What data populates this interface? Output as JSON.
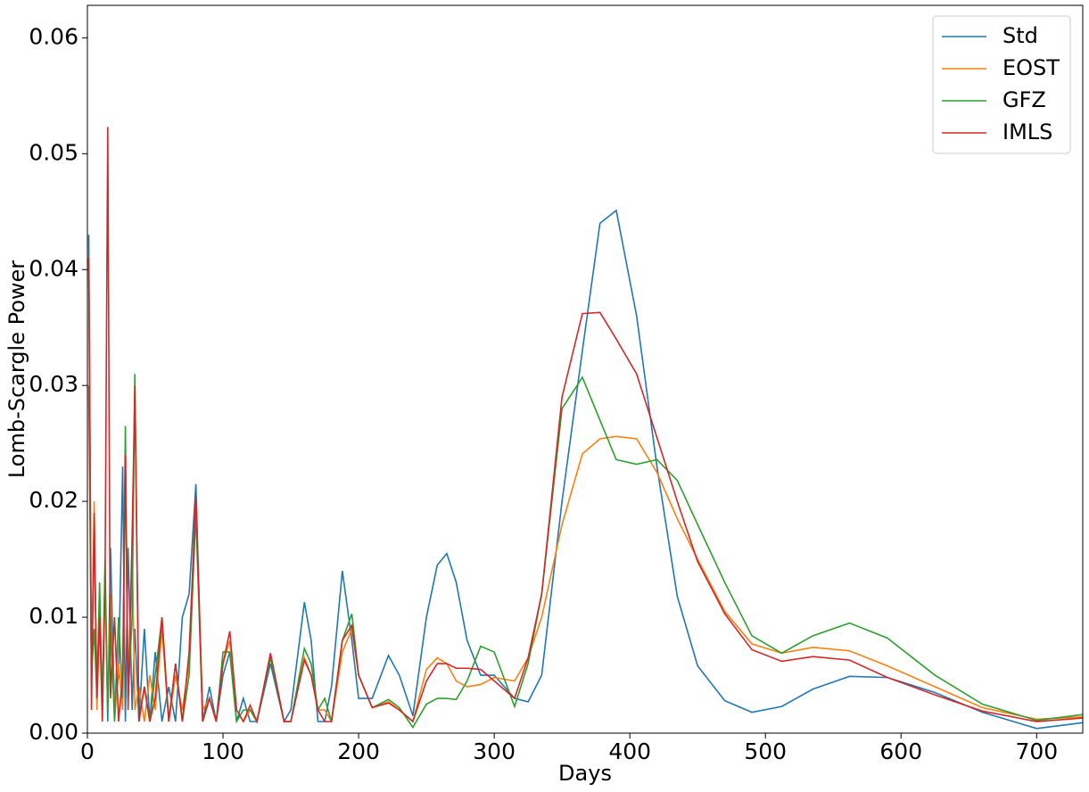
{
  "chart_data": {
    "type": "line",
    "xlabel": "Days",
    "ylabel": "Lomb-Scargle Power",
    "xlim": [
      0,
      734
    ],
    "ylim": [
      0,
      0.0628
    ],
    "xticks": [
      0,
      100,
      200,
      300,
      400,
      500,
      600,
      700
    ],
    "yticks": [
      {
        "value": 0,
        "label": "0.00"
      },
      0.01,
      0.02,
      0.03,
      0.04,
      0.05,
      0.06
    ],
    "legend": "upper right",
    "x": [
      1,
      3,
      5,
      7,
      9,
      11,
      13,
      15,
      17,
      20,
      23,
      26,
      28,
      30,
      33,
      35,
      38,
      42,
      46,
      50,
      55,
      60,
      65,
      70,
      75,
      80,
      85,
      90,
      95,
      100,
      105,
      110,
      115,
      120,
      125,
      135,
      145,
      150,
      160,
      165,
      170,
      175,
      180,
      188,
      195,
      200,
      210,
      222,
      230,
      240,
      250,
      258,
      265,
      272,
      280,
      290,
      300,
      315,
      325,
      335,
      350,
      365,
      378,
      390,
      405,
      420,
      435,
      450,
      470,
      490,
      512,
      535,
      562,
      590,
      625,
      660,
      700,
      734
    ],
    "series": [
      {
        "name": "Std",
        "color": "#1f77b4",
        "values": [
          0.043,
          0.005,
          0.018,
          0.003,
          0.012,
          0.002,
          0.014,
          0.001,
          0.016,
          0.002,
          0.005,
          0.023,
          0.001,
          0.016,
          0.002,
          0.009,
          0.001,
          0.009,
          0.001,
          0.007,
          0.001,
          0.004,
          0.001,
          0.01,
          0.012,
          0.0215,
          0.001,
          0.004,
          0.001,
          0.005,
          0.007,
          0.001,
          0.003,
          0.001,
          0.001,
          0.006,
          0.001,
          0.002,
          0.0113,
          0.008,
          0.001,
          0.001,
          0.004,
          0.014,
          0.008,
          0.003,
          0.003,
          0.0067,
          0.005,
          0.0015,
          0.01,
          0.0145,
          0.0155,
          0.013,
          0.008,
          0.005,
          0.005,
          0.003,
          0.0027,
          0.005,
          0.02,
          0.033,
          0.044,
          0.0451,
          0.036,
          0.023,
          0.0118,
          0.0058,
          0.0028,
          0.0018,
          0.0023,
          0.0038,
          0.0049,
          0.0048,
          0.0035,
          0.0018,
          0.0004,
          0.0009
        ]
      },
      {
        "name": "EOST",
        "color": "#ff7f0e",
        "values": [
          0.041,
          0.004,
          0.02,
          0.002,
          0.01,
          0.003,
          0.013,
          0.002,
          0.012,
          0.001,
          0.006,
          0.002,
          0.024,
          0.003,
          0.016,
          0.002,
          0.004,
          0.001,
          0.005,
          0.002,
          0.009,
          0.001,
          0.005,
          0.002,
          0.006,
          0.02,
          0.002,
          0.003,
          0.001,
          0.006,
          0.008,
          0.002,
          0.001,
          0.002,
          0.001,
          0.0068,
          0.001,
          0.001,
          0.0065,
          0.005,
          0.002,
          0.002,
          0.001,
          0.007,
          0.009,
          0.005,
          0.0022,
          0.0027,
          0.002,
          0.001,
          0.0055,
          0.0065,
          0.006,
          0.0045,
          0.004,
          0.0042,
          0.0048,
          0.0045,
          0.0065,
          0.01,
          0.018,
          0.0241,
          0.0254,
          0.0256,
          0.0254,
          0.0225,
          0.0185,
          0.015,
          0.0105,
          0.0077,
          0.0069,
          0.0074,
          0.0071,
          0.0058,
          0.004,
          0.0022,
          0.0012,
          0.0014
        ]
      },
      {
        "name": "GFZ",
        "color": "#2ca02c",
        "values": [
          0.03,
          0.005,
          0.009,
          0.003,
          0.013,
          0.002,
          0.015,
          0.002,
          0.01,
          0.001,
          0.01,
          0.003,
          0.0265,
          0.003,
          0.01,
          0.031,
          0.001,
          0.004,
          0.001,
          0.005,
          0.01,
          0.001,
          0.006,
          0.001,
          0.005,
          0.019,
          0.001,
          0.003,
          0.001,
          0.007,
          0.007,
          0.001,
          0.002,
          0.002,
          0.001,
          0.0065,
          0.001,
          0.001,
          0.0073,
          0.006,
          0.002,
          0.003,
          0.001,
          0.008,
          0.0103,
          0.005,
          0.0022,
          0.0029,
          0.0022,
          0.0005,
          0.0025,
          0.003,
          0.003,
          0.0029,
          0.0045,
          0.0075,
          0.007,
          0.0023,
          0.006,
          0.012,
          0.028,
          0.0307,
          0.027,
          0.0236,
          0.0232,
          0.0236,
          0.0218,
          0.018,
          0.013,
          0.0084,
          0.0069,
          0.0084,
          0.0095,
          0.0082,
          0.005,
          0.0025,
          0.0011,
          0.0016
        ]
      },
      {
        "name": "IMLS",
        "color": "#d62728",
        "values": [
          0.041,
          0.002,
          0.019,
          0.003,
          0.01,
          0.001,
          0.013,
          0.0523,
          0.003,
          0.01,
          0.001,
          0.005,
          0.024,
          0.002,
          0.017,
          0.03,
          0.001,
          0.004,
          0.001,
          0.003,
          0.01,
          0.001,
          0.006,
          0.001,
          0.007,
          0.0205,
          0.001,
          0.003,
          0.001,
          0.006,
          0.0088,
          0.002,
          0.001,
          0.0024,
          0.001,
          0.0069,
          0.001,
          0.001,
          0.0063,
          0.005,
          0.002,
          0.001,
          0.001,
          0.008,
          0.0093,
          0.005,
          0.0022,
          0.0026,
          0.002,
          0.001,
          0.0045,
          0.006,
          0.006,
          0.0056,
          0.0056,
          0.0055,
          0.0045,
          0.003,
          0.0065,
          0.012,
          0.029,
          0.0362,
          0.0363,
          0.034,
          0.031,
          0.0255,
          0.02,
          0.0148,
          0.0103,
          0.0072,
          0.0062,
          0.0066,
          0.0063,
          0.0048,
          0.0033,
          0.0019,
          0.001,
          0.0013
        ]
      }
    ]
  }
}
